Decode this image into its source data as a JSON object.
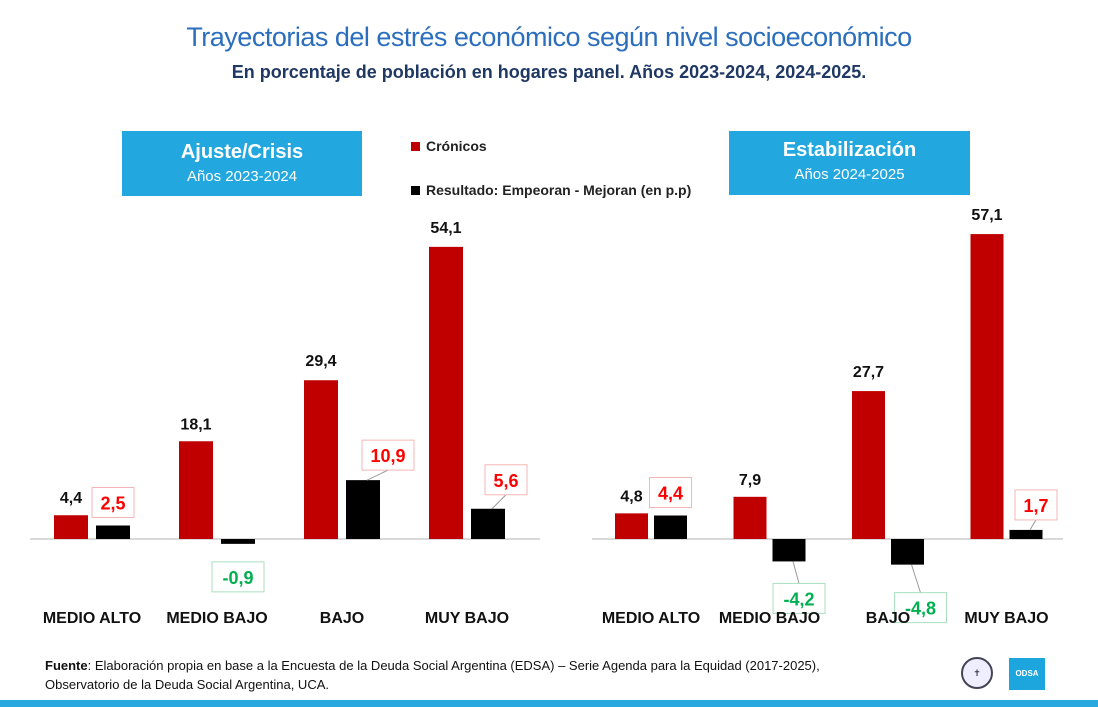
{
  "header": {
    "title": "Trayectorias del estrés económico según nivel socioeconómico",
    "subtitle": "En porcentaje de población en hogares panel. Años 2023-2024, 2024-2025."
  },
  "legend": [
    {
      "label": "Crónicos",
      "color": "#c00000"
    },
    {
      "label": "Resultado: Empeoran - Mejoran (en p.p)",
      "color": "#000000"
    }
  ],
  "chart_data": [
    {
      "type": "bar",
      "title": "Ajuste/Crisis",
      "subtitle": "Años 2023-2024",
      "categories": [
        "MEDIO ALTO",
        "MEDIO BAJO",
        "BAJO",
        "MUY BAJO"
      ],
      "series": [
        {
          "name": "Crónicos",
          "values": [
            4.4,
            18.1,
            29.4,
            54.1
          ],
          "labels": [
            "4,4",
            "18,1",
            "29,4",
            "54,1"
          ]
        },
        {
          "name": "Resultado: Empeoran - Mejoran (en p.p)",
          "values": [
            2.5,
            -0.9,
            10.9,
            5.6
          ],
          "labels": [
            "2,5",
            "-0,9",
            "10,9",
            "5,6"
          ]
        }
      ]
    },
    {
      "type": "bar",
      "title": "Estabilización",
      "subtitle": "Años 2024-2025",
      "categories": [
        "MEDIO ALTO",
        "MEDIO BAJO",
        "BAJO",
        "MUY BAJO"
      ],
      "series": [
        {
          "name": "Crónicos",
          "values": [
            4.8,
            7.9,
            27.7,
            57.1
          ],
          "labels": [
            "4,8",
            "7,9",
            "27,7",
            "57,1"
          ]
        },
        {
          "name": "Resultado: Empeoran - Mejoran (en p.p)",
          "values": [
            4.4,
            -4.2,
            -4.8,
            1.7
          ],
          "labels": [
            "4,4",
            "-4,2",
            "-4,8",
            "1,7"
          ]
        }
      ]
    }
  ],
  "colors": {
    "positive_label": "#ff0000",
    "negative_label": "#00b050",
    "cronicos": "#c00000",
    "resultado": "#000000"
  },
  "footer": {
    "source_label": "Fuente",
    "source_text": ": Elaboración propia en base a la Encuesta de la Deuda Social Argentina (EDSA) – Serie Agenda para la Equidad (2017-2025),",
    "source_text2": "Observatorio de la Deuda Social Argentina, UCA.",
    "logo_text": "ODSA"
  }
}
